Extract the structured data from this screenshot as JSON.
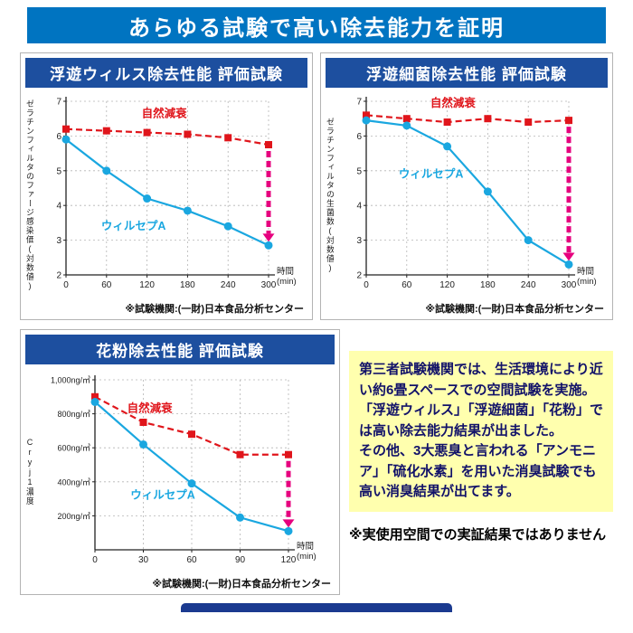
{
  "banner": {
    "title": "あらゆる試験で高い除去能力を証明"
  },
  "colors": {
    "banner_bg": "#0074c1",
    "panel_header_bg": "#1d4f9f",
    "natural_decay_red": "#e0151b",
    "product_blue": "#1aa7e0",
    "arrow_magenta": "#e6007e",
    "note_box_bg": "#ffffae",
    "note_text": "#121269"
  },
  "chart_data": [
    {
      "type": "line",
      "title": "浮遊ウィルス除去性能 評価試験",
      "ylabel": "ゼラチンフィルタのファージ感染価(対数値)",
      "xlabel": "時間(min)",
      "x": [
        0,
        60,
        120,
        180,
        240,
        300
      ],
      "ylim": [
        2,
        7
      ],
      "yticks": [
        2,
        3,
        4,
        5,
        6,
        7
      ],
      "grid": true,
      "series": [
        {
          "name": "自然減衰",
          "color": "#e0151b",
          "line": "dashed",
          "marker": "square",
          "values": [
            6.2,
            6.15,
            6.1,
            6.05,
            5.95,
            5.75
          ],
          "label_at": [
            112,
            6.55
          ]
        },
        {
          "name": "ウィルセプA",
          "color": "#1aa7e0",
          "line": "solid",
          "marker": "circle",
          "values": [
            5.9,
            5.0,
            4.2,
            3.85,
            3.4,
            2.85
          ],
          "label_at": [
            52,
            3.3
          ]
        }
      ],
      "arrow": {
        "x": 300,
        "from": 5.75,
        "to": 2.85
      },
      "footnote": "※試験機関:(一財)日本食品分析センター"
    },
    {
      "type": "line",
      "title": "浮遊細菌除去性能 評価試験",
      "ylabel": "ゼラチンフィルタの生菌数(対数値)",
      "xlabel": "時間(min)",
      "x": [
        0,
        60,
        120,
        180,
        240,
        300
      ],
      "ylim": [
        2,
        7
      ],
      "yticks": [
        2,
        3,
        4,
        5,
        6,
        7
      ],
      "grid": true,
      "series": [
        {
          "name": "自然減衰",
          "color": "#e0151b",
          "line": "dashed",
          "marker": "square",
          "values": [
            6.6,
            6.5,
            6.4,
            6.5,
            6.4,
            6.45
          ],
          "label_at": [
            95,
            6.85
          ]
        },
        {
          "name": "ウィルセプA",
          "color": "#1aa7e0",
          "line": "solid",
          "marker": "circle",
          "values": [
            6.45,
            6.3,
            5.7,
            4.4,
            3.0,
            2.3
          ],
          "label_at": [
            48,
            4.8
          ]
        }
      ],
      "arrow": {
        "x": 300,
        "from": 6.45,
        "to": 2.3
      },
      "footnote": "※試験機関:(一財)日本食品分析センター"
    },
    {
      "type": "line",
      "title": "花粉除去性能 評価試験",
      "ylabel": "Cryj1濃度",
      "xlabel": "時間(min)",
      "x": [
        0,
        30,
        60,
        90,
        120
      ],
      "ylim": [
        0,
        1000
      ],
      "yticks": [
        200,
        400,
        600,
        800,
        1000
      ],
      "ytick_labels": [
        "200ng/㎥",
        "400ng/㎥",
        "600ng/㎥",
        "800ng/㎥",
        "1,000ng/㎥"
      ],
      "grid": true,
      "series": [
        {
          "name": "自然減衰",
          "color": "#e0151b",
          "line": "dashed",
          "marker": "square",
          "values": [
            900,
            750,
            680,
            560,
            560
          ],
          "label_at": [
            20,
            810
          ]
        },
        {
          "name": "ウィルセプA",
          "color": "#1aa7e0",
          "line": "solid",
          "marker": "circle",
          "values": [
            870,
            620,
            390,
            190,
            110
          ],
          "label_at": [
            22,
            300
          ]
        }
      ],
      "arrow": {
        "x": 120,
        "from": 560,
        "to": 110
      },
      "footnote": "※試験機関:(一財)日本食品分析センター"
    }
  ],
  "note_box": {
    "paragraphs": [
      "第三者試験機関では、生活環境により近い約6畳スペースでの空間試験を実施。",
      "「浮遊ウィルス」「浮遊細菌」「花粉」では高い除去能力結果が出ました。",
      "その他、3大悪臭と言われる「アンモニア」「硫化水素」を用いた消臭試験でも高い消臭結果が出てます。"
    ]
  },
  "disclaimer": "※実使用空間での実証結果ではありません"
}
